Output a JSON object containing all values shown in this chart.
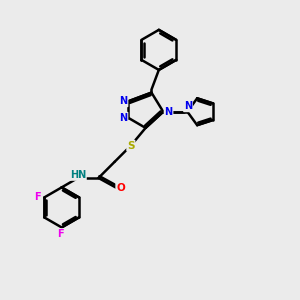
{
  "bg_color": "#ebebeb",
  "line_color": "#000000",
  "bond_width": 1.8,
  "atom_colors": {
    "N": "#0000ee",
    "O": "#ff0000",
    "S": "#aaaa00",
    "F": "#ee00ee",
    "H": "#008080",
    "C": "#000000"
  },
  "figsize": [
    3.0,
    3.0
  ],
  "dpi": 100
}
